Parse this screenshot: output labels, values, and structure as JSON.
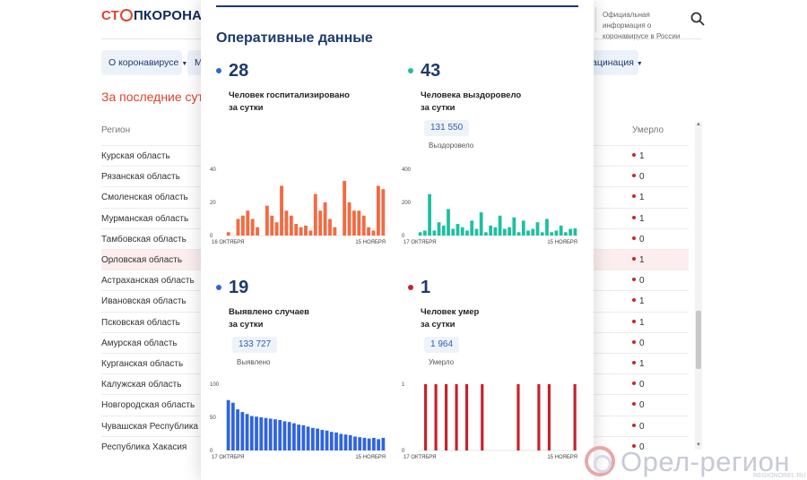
{
  "header": {
    "logo_part1": "СТ",
    "logo_part2": "ПКОРОНАВИ",
    "official_text": "Официальная информация о коронавирусе в России"
  },
  "nav": {
    "item1": "О коронавирусе",
    "item2": "М",
    "item3": "ацинация"
  },
  "period_title": "За последние сутки",
  "table": {
    "col_region": "Регион",
    "col_died": "Умерло",
    "rows": [
      {
        "region": "Курская область",
        "died": "1"
      },
      {
        "region": "Рязанская область",
        "died": "0"
      },
      {
        "region": "Смоленская область",
        "died": "1"
      },
      {
        "region": "Мурманская область",
        "died": "1"
      },
      {
        "region": "Тамбовская область",
        "died": "0"
      },
      {
        "region": "Орловская область",
        "died": "1"
      },
      {
        "region": "Астраханская область",
        "died": "0"
      },
      {
        "region": "Ивановская область",
        "died": "1"
      },
      {
        "region": "Псковская область",
        "died": "1"
      },
      {
        "region": "Амурская область",
        "died": "0"
      },
      {
        "region": "Курганская область",
        "died": "1"
      },
      {
        "region": "Калужская область",
        "died": "0"
      },
      {
        "region": "Новгородская область",
        "died": "0"
      },
      {
        "region": "Чувашская Республика",
        "died": "0"
      },
      {
        "region": "Республика Хакасия",
        "died": "0"
      }
    ]
  },
  "modal": {
    "title": "Оперативные данные",
    "cards": {
      "hosp": {
        "value": "28",
        "desc1": "Человек госпитализировано",
        "desc2": "за сутки"
      },
      "recov": {
        "value": "43",
        "desc1": "Человека выздоровело",
        "desc2": "за сутки",
        "total": "131 550",
        "total_label": "Выздоровело"
      },
      "cases": {
        "value": "19",
        "desc1": "Выявлено случаев",
        "desc2": "за сутки",
        "total": "133 727",
        "total_label": "Выявлено"
      },
      "died": {
        "value": "1",
        "desc1": "Человек умер",
        "desc2": "за сутки",
        "total": "1 964",
        "total_label": "Умерло"
      }
    }
  },
  "chart_data": [
    {
      "type": "bar",
      "color": "#f26b43",
      "ylim": [
        0,
        40
      ],
      "yticks": [
        "40",
        "20",
        "0"
      ],
      "x_start_label": "16 ОКТЯБРЯ",
      "x_end_label": "15 НОЯБРЯ",
      "values": [
        2,
        0,
        10,
        12,
        15,
        10,
        5,
        0,
        18,
        12,
        8,
        30,
        15,
        12,
        7,
        5,
        6,
        3,
        25,
        15,
        20,
        10,
        5,
        0,
        33,
        20,
        15,
        15,
        12,
        5,
        3,
        30,
        28
      ]
    },
    {
      "type": "bar",
      "color": "#1fbfa0",
      "ylim": [
        0,
        400
      ],
      "yticks": [
        "400",
        "200",
        "0"
      ],
      "x_start_label": "17 ОКТЯБРЯ",
      "x_end_label": "15 НОЯБРЯ",
      "values": [
        20,
        30,
        250,
        30,
        80,
        60,
        160,
        40,
        70,
        50,
        30,
        90,
        40,
        140,
        20,
        60,
        50,
        120,
        40,
        50,
        110,
        20,
        90,
        30,
        40,
        80,
        20,
        100,
        20,
        30,
        60,
        20,
        40,
        43
      ]
    },
    {
      "type": "bar",
      "color": "#2f64e0",
      "ylim": [
        0,
        100
      ],
      "yticks": [
        "100",
        "50",
        "0"
      ],
      "x_start_label": "17 ОКТЯБРЯ",
      "x_end_label": "15 НОЯБРЯ",
      "values": [
        76,
        72,
        62,
        58,
        55,
        52,
        51,
        50,
        49,
        48,
        47,
        46,
        44,
        43,
        41,
        39,
        38,
        36,
        34,
        33,
        31,
        30,
        28,
        27,
        25,
        24,
        23,
        21,
        20,
        19,
        18,
        19,
        17,
        19
      ]
    },
    {
      "type": "bar",
      "color": "#c8202c",
      "ylim": [
        0,
        1
      ],
      "yticks": [
        "1",
        "0"
      ],
      "x_start_label": "17 ОКТЯБРЯ",
      "x_end_label": "15 НОЯБРЯ",
      "values": [
        0,
        1,
        0,
        1,
        0,
        1,
        0,
        1,
        0,
        1,
        0,
        0,
        1,
        0,
        0,
        0,
        0,
        0,
        0,
        1,
        0,
        0,
        0,
        1,
        0,
        1,
        0,
        0,
        0,
        0,
        1
      ]
    }
  ],
  "watermark": {
    "text": "Орел-регион",
    "sub": "REGIONOREL.RU"
  },
  "scrollbar": {
    "up": "▲",
    "down": "▼"
  }
}
